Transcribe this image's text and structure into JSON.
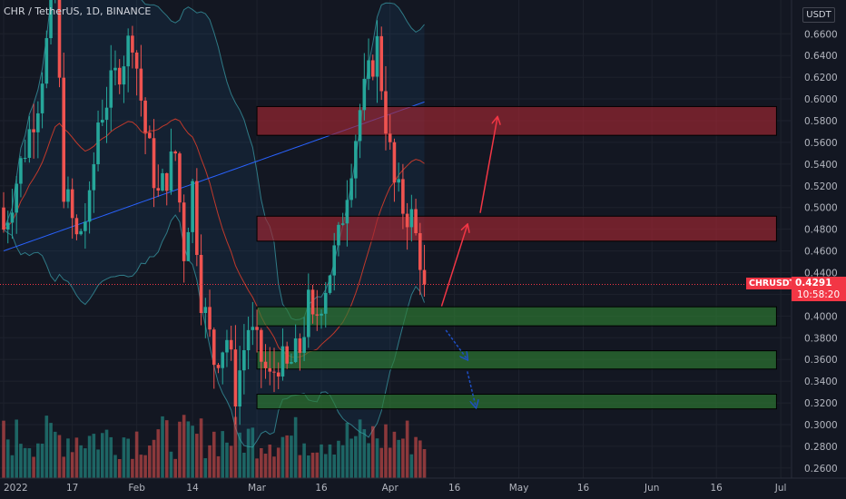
{
  "header": {
    "title": "CHR / TetherUS, 1D, BINANCE"
  },
  "currency": "USDT",
  "last_price": {
    "symbol": "CHRUSDT",
    "price": "0.4291",
    "countdown": "10:58:20"
  },
  "colors": {
    "up": "#26a69a",
    "down": "#ef5350",
    "background": "#131722",
    "resistance_zone": "#a32633",
    "support_zone": "#2e7d32",
    "arrow_up": "#f23645",
    "arrow_down": "#1e4fc4"
  },
  "chart_data": {
    "type": "candlestick",
    "y_axis": {
      "scale": "linear",
      "range": [
        0.2532,
        0.6878
      ],
      "ticks": [
        "0.2600",
        "0.2800",
        "0.3000",
        "0.3200",
        "0.3400",
        "0.3600",
        "0.3800",
        "0.4000",
        "0.4200",
        "0.4400",
        "0.4600",
        "0.4800",
        "0.5000",
        "0.5200",
        "0.5400",
        "0.5600",
        "0.5800",
        "0.6000",
        "0.6200",
        "0.6400",
        "0.6600"
      ]
    },
    "x_axis": {
      "start": "2022-01-01",
      "end": "2022-07-01",
      "labels": [
        {
          "date": "2022-01-01",
          "label": "2022"
        },
        {
          "date": "2022-01-17",
          "label": "17"
        },
        {
          "date": "2022-02-01",
          "label": "Feb"
        },
        {
          "date": "2022-02-14",
          "label": "14"
        },
        {
          "date": "2022-03-01",
          "label": "Mar"
        },
        {
          "date": "2022-03-16",
          "label": "16"
        },
        {
          "date": "2022-04-01",
          "label": "Apr"
        },
        {
          "date": "2022-04-16",
          "label": "16"
        },
        {
          "date": "2022-05-01",
          "label": "May"
        },
        {
          "date": "2022-05-16",
          "label": "16"
        },
        {
          "date": "2022-06-01",
          "label": "Jun"
        },
        {
          "date": "2022-06-16",
          "label": "16"
        },
        {
          "date": "2022-07-01",
          "label": "Jul"
        }
      ]
    },
    "grid": true,
    "zones": [
      {
        "kind": "resistance",
        "from": "2022-03-01",
        "to": "2022-06-30",
        "low": 0.5665,
        "high": 0.593
      },
      {
        "kind": "resistance",
        "from": "2022-03-01",
        "to": "2022-06-30",
        "low": 0.469,
        "high": 0.492
      },
      {
        "kind": "support",
        "from": "2022-03-01",
        "to": "2022-06-30",
        "low": 0.391,
        "high": 0.4085
      },
      {
        "kind": "support",
        "from": "2022-03-01",
        "to": "2022-06-30",
        "low": 0.3512,
        "high": 0.368
      },
      {
        "kind": "support",
        "from": "2022-03-01",
        "to": "2022-06-30",
        "low": 0.3145,
        "high": 0.328
      }
    ],
    "arrows": [
      {
        "direction": "up",
        "from": [
          "2022-04-13",
          0.409
        ],
        "to": [
          "2022-04-19",
          0.484
        ]
      },
      {
        "direction": "up",
        "from": [
          "2022-04-22",
          0.495
        ],
        "to": [
          "2022-04-26",
          0.583
        ]
      },
      {
        "direction": "down",
        "from": [
          "2022-04-14",
          0.387
        ],
        "to": [
          "2022-04-19",
          0.36
        ]
      },
      {
        "direction": "down",
        "from": [
          "2022-04-19",
          0.349
        ],
        "to": [
          "2022-04-21",
          0.316
        ]
      }
    ],
    "last_price": 0.4291,
    "candles": [],
    "volumes": []
  }
}
